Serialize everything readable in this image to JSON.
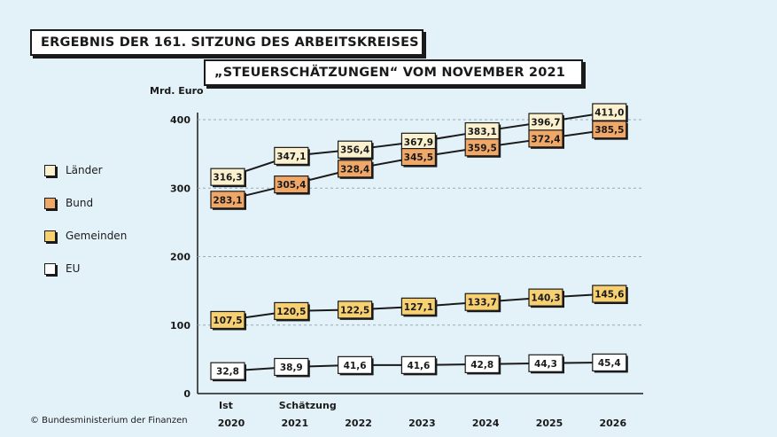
{
  "title_line1": "ERGEBNIS DER 161. SITZUNG DES ARBEITSKREISES",
  "title_line2": "„STEUERSCHÄTZUNGEN“ VOM NOVEMBER 2021",
  "copyright": "© Bundesministerium der Finanzen",
  "colors": {
    "background": "#e3f2f9",
    "laender": "#fbf1cf",
    "bund": "#f0a868",
    "gemeinden": "#f7d072",
    "eu": "#ffffff",
    "line": "#1a1a1a",
    "grid": "#9aa9b3"
  },
  "chart_data": {
    "type": "line",
    "ylabel": "Mrd. Euro",
    "ylim": [
      0,
      400
    ],
    "yticks": [
      0,
      100,
      200,
      300,
      400
    ],
    "categories": [
      "2020",
      "2021",
      "2022",
      "2023",
      "2024",
      "2025",
      "2026"
    ],
    "category_prefix": [
      "Ist",
      "Schätzung",
      "",
      "",
      "",
      "",
      ""
    ],
    "grid": "horizontal dashed",
    "legend_position": "left",
    "series": [
      {
        "name": "Länder",
        "values": [
          "316,3",
          "347,1",
          "356,4",
          "367,9",
          "383,1",
          "396,7",
          "411,0"
        ]
      },
      {
        "name": "Bund",
        "values": [
          "283,1",
          "305,4",
          "328,4",
          "345,5",
          "359,5",
          "372,4",
          "385,5"
        ]
      },
      {
        "name": "Gemeinden",
        "values": [
          "107,5",
          "120,5",
          "122,5",
          "127,1",
          "133,7",
          "140,3",
          "145,6"
        ]
      },
      {
        "name": "EU",
        "values": [
          "32,8",
          "38,9",
          "41,6",
          "41,6",
          "42,8",
          "44,3",
          "45,4"
        ]
      }
    ]
  }
}
